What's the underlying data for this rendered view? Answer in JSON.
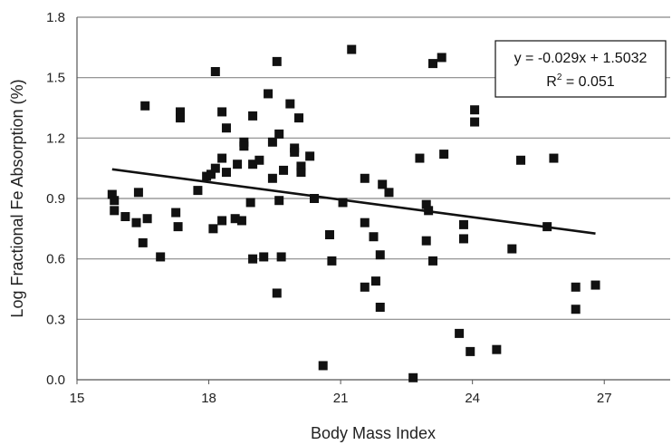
{
  "chart_data": {
    "type": "scatter",
    "title": "",
    "xlabel": "Body Mass Index",
    "ylabel": "Log Fractional Fe Absorption (%)",
    "xlim": [
      15,
      28.5
    ],
    "ylim": [
      0,
      1.8
    ],
    "xticks": [
      "15",
      "18",
      "21",
      "24",
      "27"
    ],
    "yticks": [
      "0.0",
      "0.3",
      "0.6",
      "0.9",
      "1.2",
      "1.5",
      "1.8"
    ],
    "grid": "horizontal",
    "colors": {
      "points": "#111111",
      "trendline": "#111111",
      "gridline": "#888888"
    },
    "annotation": {
      "equation": "y = -0.029x + 1.5032",
      "r2_label": "R",
      "r2_sup": "2",
      "r2_value": " = 0.051"
    },
    "trendline": {
      "slope": -0.029,
      "intercept": 1.5032,
      "x_range": [
        15.8,
        26.8
      ]
    },
    "points": [
      [
        15.8,
        0.92
      ],
      [
        15.85,
        0.89
      ],
      [
        15.85,
        0.84
      ],
      [
        16.1,
        0.81
      ],
      [
        16.35,
        0.78
      ],
      [
        16.4,
        0.93
      ],
      [
        16.5,
        0.68
      ],
      [
        16.55,
        1.36
      ],
      [
        16.6,
        0.8
      ],
      [
        16.9,
        0.61
      ],
      [
        17.25,
        0.83
      ],
      [
        17.3,
        0.76
      ],
      [
        17.35,
        1.33
      ],
      [
        17.35,
        1.3
      ],
      [
        17.75,
        0.94
      ],
      [
        17.95,
        1.01
      ],
      [
        18.05,
        1.02
      ],
      [
        18.1,
        0.75
      ],
      [
        18.15,
        1.53
      ],
      [
        18.15,
        1.05
      ],
      [
        18.3,
        1.1
      ],
      [
        18.3,
        1.33
      ],
      [
        18.3,
        0.79
      ],
      [
        18.4,
        1.25
      ],
      [
        18.4,
        1.03
      ],
      [
        18.6,
        0.8
      ],
      [
        18.65,
        1.07
      ],
      [
        18.75,
        0.79
      ],
      [
        18.8,
        1.18
      ],
      [
        18.8,
        1.16
      ],
      [
        18.95,
        0.88
      ],
      [
        19.0,
        1.07
      ],
      [
        19.0,
        1.31
      ],
      [
        19.0,
        0.6
      ],
      [
        19.15,
        1.09
      ],
      [
        19.25,
        0.61
      ],
      [
        19.35,
        1.42
      ],
      [
        19.45,
        1.18
      ],
      [
        19.45,
        1.0
      ],
      [
        19.55,
        0.43
      ],
      [
        19.55,
        1.58
      ],
      [
        19.6,
        1.22
      ],
      [
        19.6,
        0.89
      ],
      [
        19.65,
        0.61
      ],
      [
        19.7,
        1.04
      ],
      [
        19.85,
        1.37
      ],
      [
        19.95,
        1.15
      ],
      [
        19.95,
        1.13
      ],
      [
        20.05,
        1.3
      ],
      [
        20.1,
        1.06
      ],
      [
        20.1,
        1.03
      ],
      [
        20.3,
        1.11
      ],
      [
        20.4,
        0.9
      ],
      [
        20.6,
        0.07
      ],
      [
        20.75,
        0.72
      ],
      [
        20.8,
        0.59
      ],
      [
        21.05,
        0.88
      ],
      [
        21.25,
        1.64
      ],
      [
        21.55,
        0.78
      ],
      [
        21.55,
        0.46
      ],
      [
        21.55,
        1.0
      ],
      [
        21.75,
        0.71
      ],
      [
        21.8,
        0.49
      ],
      [
        21.9,
        0.62
      ],
      [
        21.9,
        0.36
      ],
      [
        21.95,
        0.97
      ],
      [
        22.1,
        0.93
      ],
      [
        22.65,
        0.01
      ],
      [
        22.8,
        1.1
      ],
      [
        22.95,
        0.87
      ],
      [
        22.95,
        0.69
      ],
      [
        23.0,
        0.84
      ],
      [
        23.1,
        0.59
      ],
      [
        23.1,
        1.57
      ],
      [
        23.3,
        1.6
      ],
      [
        23.35,
        1.12
      ],
      [
        23.7,
        0.23
      ],
      [
        23.8,
        0.77
      ],
      [
        23.8,
        0.7
      ],
      [
        23.95,
        0.14
      ],
      [
        24.05,
        1.34
      ],
      [
        24.05,
        1.28
      ],
      [
        24.55,
        0.15
      ],
      [
        24.9,
        0.65
      ],
      [
        25.1,
        1.09
      ],
      [
        25.7,
        0.76
      ],
      [
        25.85,
        1.1
      ],
      [
        26.35,
        0.46
      ],
      [
        26.35,
        0.35
      ],
      [
        26.8,
        0.47
      ]
    ]
  }
}
